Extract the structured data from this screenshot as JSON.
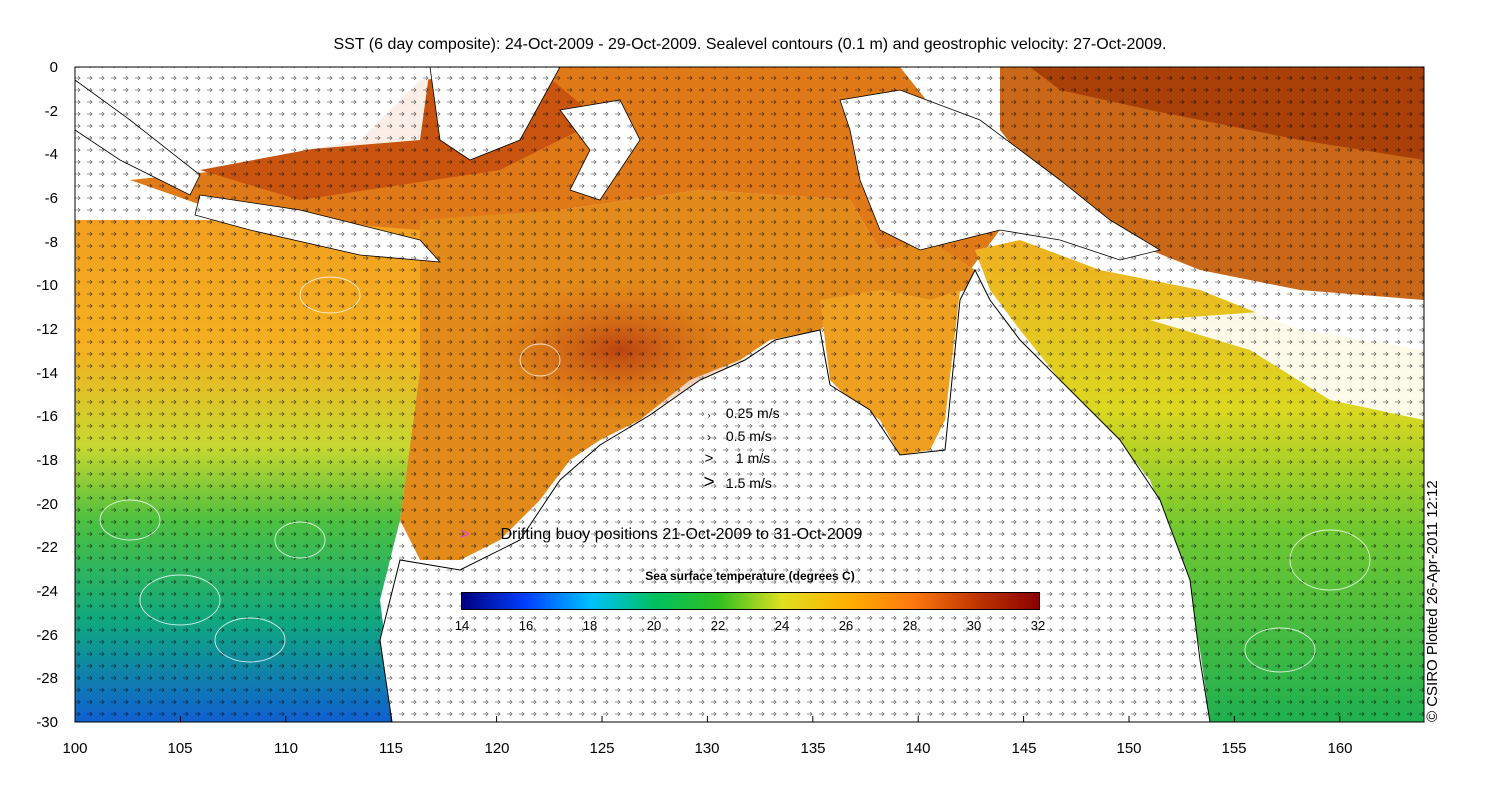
{
  "title": "SST (6 day composite): 24-Oct-2009 - 29-Oct-2009. Sealevel contours (0.1 m) and geostrophic velocity: 27-Oct-2009.",
  "axes": {
    "x_ticks": [
      "100",
      "105",
      "110",
      "115",
      "120",
      "125",
      "130",
      "135",
      "140",
      "145",
      "150",
      "155",
      "160"
    ],
    "y_ticks": [
      "0",
      "-2",
      "-4",
      "-6",
      "-8",
      "-10",
      "-12",
      "-14",
      "-16",
      "-18",
      "-20",
      "-22",
      "-24",
      "-26",
      "-28",
      "-30"
    ],
    "lon_range": [
      100,
      164
    ],
    "lat_range": [
      -30,
      0
    ]
  },
  "velocity_legend": [
    {
      "glyph": "›",
      "label": "0.25 m/s"
    },
    {
      "glyph": "›",
      "label": "0.5 m/s"
    },
    {
      "glyph": ">",
      "label": "1 m/s"
    },
    {
      "glyph": ">",
      "label": "1.5 m/s"
    }
  ],
  "buoy_legend": {
    "glyph": ">",
    "label": "Drifting buoy positions 21-Oct-2009 to 31-Oct-2009",
    "color": "#e040e0"
  },
  "colorbar": {
    "title": "Sea surface temperature (degrees C)",
    "ticks": [
      "14",
      "16",
      "18",
      "20",
      "22",
      "24",
      "26",
      "28",
      "30",
      "32"
    ],
    "colors": [
      "#00007f",
      "#0040ff",
      "#00c0ff",
      "#00c060",
      "#30c020",
      "#e0e020",
      "#ffb000",
      "#ff7a10",
      "#c03800",
      "#8b0000"
    ]
  },
  "credit": "© CSIRO Plotted 26-Apr-2011 12:12"
}
